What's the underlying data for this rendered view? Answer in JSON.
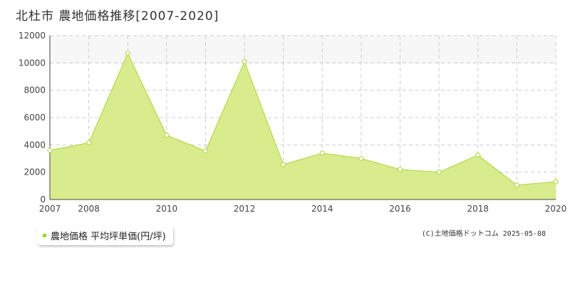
{
  "title": "北杜市 農地価格推移[2007-2020]",
  "legend": {
    "label": "農地価格 平均坪単価(円/坪)"
  },
  "credit": "(C)土地価格ドットコム 2025-05-08",
  "colors": {
    "fill": "#d8ec8d",
    "line": "#b4d84c",
    "grid": "#cccccc",
    "band": "#f7f7f7",
    "marker_stroke": "#b4d84c",
    "marker_fill": "#ffffff",
    "legend_swatch": "#a8d13a"
  },
  "chart_data": {
    "type": "area",
    "x": [
      2007,
      2008,
      2009,
      2010,
      2011,
      2012,
      2013,
      2014,
      2015,
      2016,
      2017,
      2018,
      2019,
      2020
    ],
    "series": [
      {
        "name": "農地価格 平均坪単価(円/坪)",
        "values": [
          3600,
          4150,
          10700,
          4700,
          3550,
          10100,
          2550,
          3400,
          3000,
          2200,
          2000,
          3250,
          1050,
          1300
        ]
      }
    ],
    "title": "北杜市 農地価格推移[2007-2020]",
    "xlabel": "",
    "ylabel": "",
    "ylim": [
      0,
      12000
    ],
    "xlim": [
      2007,
      2020
    ],
    "y_ticks": [
      0,
      2000,
      4000,
      6000,
      8000,
      10000,
      12000
    ],
    "x_tick_labels": [
      2007,
      2008,
      2010,
      2012,
      2014,
      2016,
      2018,
      2020
    ],
    "grid": true,
    "legend_position": "bottom-left"
  }
}
